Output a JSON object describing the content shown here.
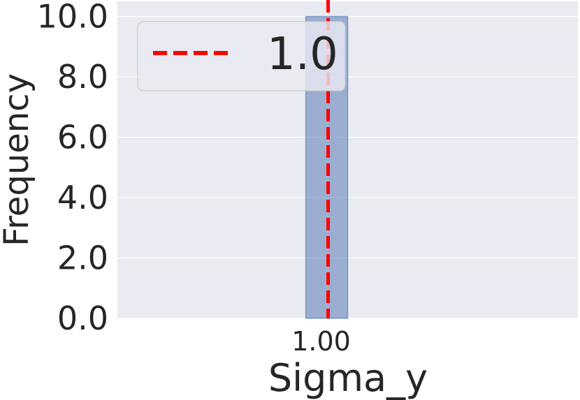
{
  "chart_data": {
    "type": "bar",
    "title": "",
    "xlabel": "Sigma_y",
    "ylabel": "Frequency",
    "xlim": [
      0.0,
      2.2
    ],
    "ylim": [
      0,
      10.5
    ],
    "x_ticks": [
      {
        "value": 1.0,
        "label": "1.00"
      }
    ],
    "y_ticks": [
      {
        "value": 0,
        "label": "0.0"
      },
      {
        "value": 2,
        "label": "2.0"
      },
      {
        "value": 4,
        "label": "4.0"
      },
      {
        "value": 6,
        "label": "6.0"
      },
      {
        "value": 8,
        "label": "8.0"
      },
      {
        "value": 10,
        "label": "10.0"
      }
    ],
    "bars": [
      {
        "x_start": 0.9,
        "x_end": 1.1,
        "count": 10
      }
    ],
    "reference_line": {
      "x": 1.0,
      "label": "1.0",
      "color": "#ff0000",
      "style": "dashed"
    },
    "legend": {
      "position": "top-left",
      "entries": [
        "1.0"
      ]
    },
    "grid": true,
    "colors": {
      "background": "#eaeaf2",
      "bar": "#4c72b0",
      "grid": "#ffffff",
      "text": "#262626"
    }
  }
}
